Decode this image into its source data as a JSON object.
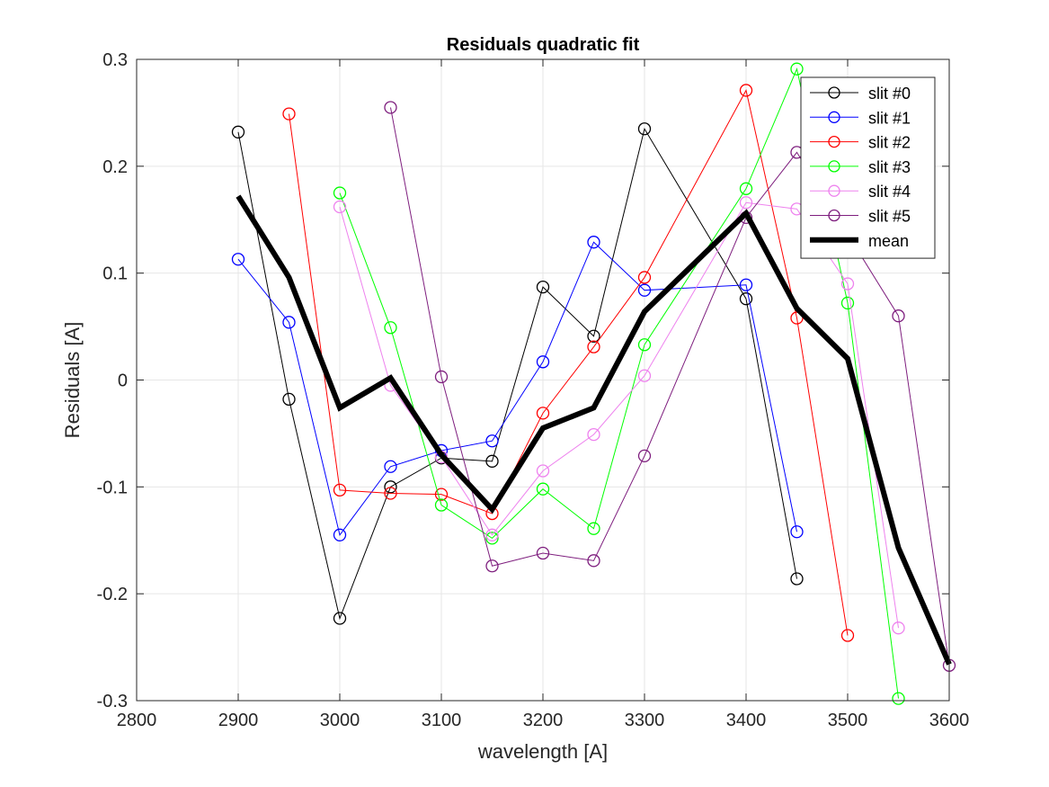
{
  "chart_data": {
    "type": "line",
    "title": "Residuals quadratic fit",
    "xlabel": "wavelength [A]",
    "ylabel": "Residuals [A]",
    "xlim": [
      2800,
      3600
    ],
    "ylim": [
      -0.3,
      0.3
    ],
    "xticks": [
      2800,
      2900,
      3000,
      3100,
      3200,
      3300,
      3400,
      3500,
      3600
    ],
    "xtick_labels": [
      "2800",
      "2900",
      "3000",
      "3100",
      "3200",
      "3300",
      "3400",
      "3500",
      "3600"
    ],
    "yticks": [
      -0.3,
      -0.2,
      -0.1,
      0,
      0.1,
      0.2,
      0.3
    ],
    "ytick_labels": [
      "-0.3",
      "-0.2",
      "-0.1",
      "0",
      "0.1",
      "0.2",
      "0.3"
    ],
    "grid": true,
    "legend_position": "top-right",
    "series": [
      {
        "name": "slit #0",
        "color": "#000000",
        "marker": "circle",
        "x": [
          2900,
          2950,
          3000,
          3050,
          3100,
          3150,
          3200,
          3250,
          3300,
          3400,
          3450
        ],
        "y": [
          0.232,
          -0.018,
          -0.223,
          -0.1,
          -0.073,
          -0.076,
          0.087,
          0.041,
          0.235,
          0.076,
          -0.186
        ]
      },
      {
        "name": "slit #1",
        "color": "#0000ff",
        "marker": "circle",
        "x": [
          2900,
          2950,
          3000,
          3050,
          3100,
          3150,
          3200,
          3250,
          3300,
          3400,
          3450
        ],
        "y": [
          0.113,
          0.054,
          -0.145,
          -0.081,
          -0.066,
          -0.057,
          0.017,
          0.129,
          0.084,
          0.089,
          -0.142
        ]
      },
      {
        "name": "slit #2",
        "color": "#ff0000",
        "marker": "circle",
        "x": [
          2950,
          3000,
          3050,
          3100,
          3150,
          3200,
          3250,
          3300,
          3400,
          3450,
          3500
        ],
        "y": [
          0.249,
          -0.103,
          -0.106,
          -0.107,
          -0.125,
          -0.031,
          0.031,
          0.096,
          0.271,
          0.058,
          -0.239
        ]
      },
      {
        "name": "slit #3",
        "color": "#00ff00",
        "marker": "circle",
        "x": [
          3000,
          3050,
          3100,
          3150,
          3200,
          3250,
          3300,
          3400,
          3450,
          3500,
          3550
        ],
        "y": [
          0.175,
          0.049,
          -0.117,
          -0.148,
          -0.102,
          -0.139,
          0.033,
          0.179,
          0.291,
          0.072,
          -0.298
        ]
      },
      {
        "name": "slit #4",
        "color": "#ee82ee",
        "marker": "circle",
        "x": [
          3000,
          3050,
          3100,
          3150,
          3200,
          3250,
          3300,
          3400,
          3450,
          3500,
          3550
        ],
        "y": [
          0.162,
          -0.005,
          -0.072,
          -0.145,
          -0.085,
          -0.051,
          0.004,
          0.166,
          0.16,
          0.09,
          -0.232
        ]
      },
      {
        "name": "slit #5",
        "color": "#7e1e7e",
        "marker": "circle",
        "x": [
          3050,
          3100,
          3150,
          3200,
          3250,
          3300,
          3400,
          3450,
          3550,
          3600
        ],
        "y": [
          0.255,
          0.003,
          -0.174,
          -0.162,
          -0.169,
          -0.071,
          0.152,
          0.213,
          0.06,
          -0.267
        ]
      },
      {
        "name": "mean",
        "color": "#000000",
        "marker": "none",
        "line_weight": "thick",
        "x": [
          2900,
          2950,
          3000,
          3050,
          3100,
          3150,
          3200,
          3250,
          3300,
          3400,
          3450,
          3500,
          3550,
          3600
        ],
        "y": [
          0.172,
          0.096,
          -0.026,
          0.002,
          -0.07,
          -0.121,
          -0.045,
          -0.026,
          0.064,
          0.156,
          0.067,
          0.02,
          -0.157,
          -0.266
        ]
      }
    ]
  }
}
